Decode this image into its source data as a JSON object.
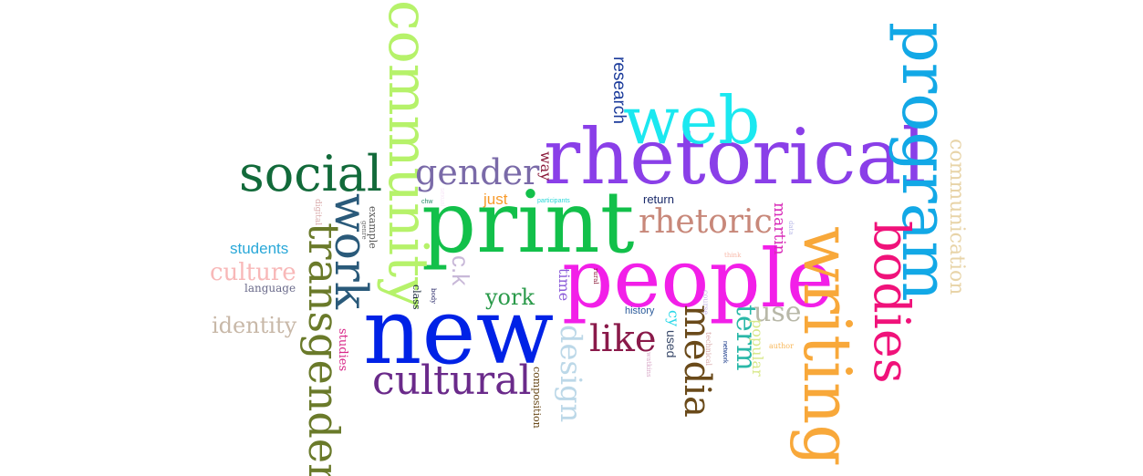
{
  "words": [
    {
      "text": "print",
      "color": "#12c04a"
    },
    {
      "text": "rhetorical",
      "color": "#8a3fe8"
    },
    {
      "text": "new",
      "color": "#0022e6"
    },
    {
      "text": "people",
      "color": "#f21fe8"
    },
    {
      "text": "web",
      "color": "#1be8f0"
    },
    {
      "text": "program",
      "color": "#12a8e6"
    },
    {
      "text": "writing",
      "color": "#f8a83a"
    },
    {
      "text": "community",
      "color": "#b6f26a"
    },
    {
      "text": "bodies",
      "color": "#f0127a"
    },
    {
      "text": "social",
      "color": "#126a3a"
    },
    {
      "text": "work",
      "color": "#2a5a7a"
    },
    {
      "text": "transgender",
      "color": "#6a7a2a"
    },
    {
      "text": "cultural",
      "color": "#6a2a8a"
    },
    {
      "text": "gender",
      "color": "#7a6aa8"
    },
    {
      "text": "rhetoric",
      "color": "#c8887a"
    },
    {
      "text": "like",
      "color": "#8a1a4a"
    },
    {
      "text": "media",
      "color": "#6a4a1a"
    },
    {
      "text": "design",
      "color": "#bcd8e8"
    },
    {
      "text": "term",
      "color": "#2ab8a8"
    },
    {
      "text": "use",
      "color": "#b8b8a8"
    },
    {
      "text": "york",
      "color": "#2a9a4a"
    },
    {
      "text": "culture",
      "color": "#f8b8b8"
    },
    {
      "text": "identity",
      "color": "#c8b8a8"
    },
    {
      "text": "students",
      "color": "#2aa8d8"
    },
    {
      "text": "research",
      "color": "#1a3a9a"
    },
    {
      "text": "communication",
      "color": "#e8d4a8"
    },
    {
      "text": "c.k",
      "color": "#c8b8d8"
    },
    {
      "text": "martin",
      "color": "#d82ab8"
    },
    {
      "text": "just",
      "color": "#f89a2a"
    },
    {
      "text": "way",
      "color": "#8a1a3a"
    },
    {
      "text": "time",
      "color": "#8a5ad8"
    },
    {
      "text": "popular",
      "color": "#d8e88a"
    },
    {
      "text": "cy",
      "color": "#2ad8e8"
    },
    {
      "text": "used",
      "color": "#3a4a6a"
    },
    {
      "text": "studies",
      "color": "#d82a8a"
    },
    {
      "text": "language",
      "color": "#6a6a8a"
    },
    {
      "text": "example",
      "color": "#5a5a5a"
    },
    {
      "text": "composition",
      "color": "#6a4a1a"
    },
    {
      "text": "return",
      "color": "#1a2a6a"
    },
    {
      "text": "history",
      "color": "#2a5a9a"
    },
    {
      "text": "class",
      "color": "#1a2a3a"
    },
    {
      "text": "digital",
      "color": "#d8a8a8"
    },
    {
      "text": "genre",
      "color": "#6a6a6a"
    },
    {
      "text": "participants",
      "color": "#2ad8d8"
    },
    {
      "text": "chw",
      "color": "#2a8a6a"
    },
    {
      "text": "body",
      "color": "#2a2a6a"
    },
    {
      "text": "rural",
      "color": "#8a1a3a"
    },
    {
      "text": "course",
      "color": "#c8b8e8"
    },
    {
      "text": "technical",
      "color": "#d8a8a8"
    },
    {
      "text": "network",
      "color": "#1a3a8a"
    },
    {
      "text": "author",
      "color": "#f8b85a"
    },
    {
      "text": "think",
      "color": "#f8b8a8"
    },
    {
      "text": "data",
      "color": "#b8b8e8"
    },
    {
      "text": "watkins",
      "color": "#d8a8c8"
    },
    {
      "text": "sexual",
      "color": "#f8e8f8"
    }
  ]
}
